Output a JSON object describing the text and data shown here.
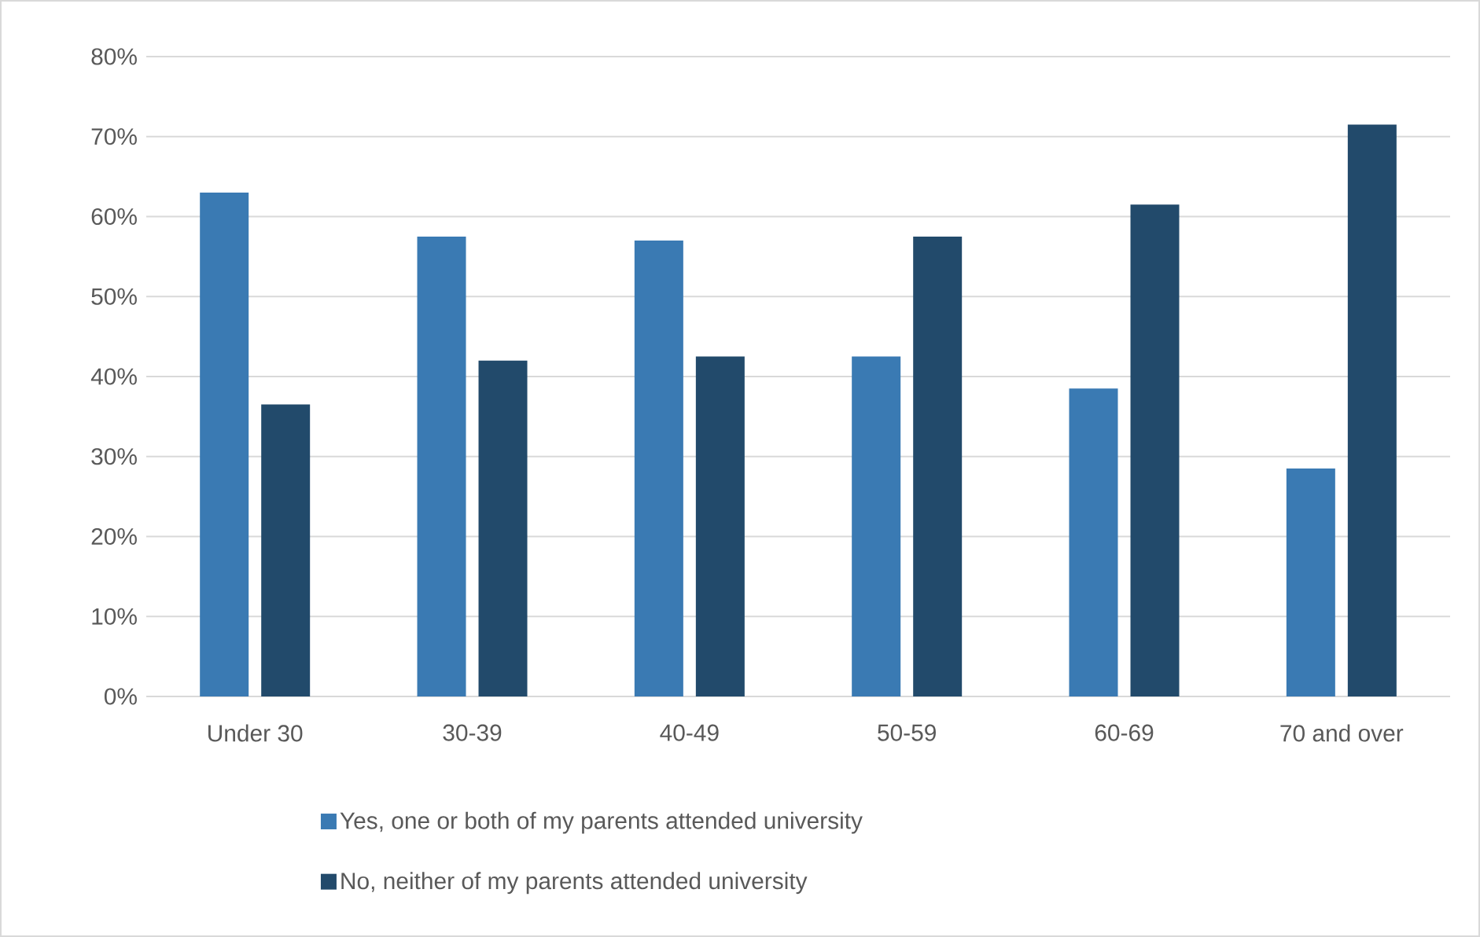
{
  "chart_data": {
    "type": "bar",
    "categories": [
      "Under 30",
      "30-39",
      "40-49",
      "50-59",
      "60-69",
      "70 and over"
    ],
    "series": [
      {
        "name": "Yes, one or both of my parents attended university",
        "color": "#3a7ab3",
        "values": [
          63,
          57.5,
          57,
          42.5,
          38.5,
          28.5
        ]
      },
      {
        "name": "No, neither of my parents attended university",
        "color": "#224a6b",
        "values": [
          36.5,
          42,
          42.5,
          57.5,
          61.5,
          71.5
        ]
      }
    ],
    "ylim": [
      0,
      80
    ],
    "yticks": [
      {
        "value": 0,
        "label": "0%"
      },
      {
        "value": 10,
        "label": "10%"
      },
      {
        "value": 20,
        "label": "20%"
      },
      {
        "value": 30,
        "label": "30%"
      },
      {
        "value": 40,
        "label": "40%"
      },
      {
        "value": 50,
        "label": "50%"
      },
      {
        "value": 60,
        "label": "60%"
      },
      {
        "value": 70,
        "label": "70%"
      },
      {
        "value": 80,
        "label": "80%"
      }
    ],
    "grid": "y",
    "legend": "bottom"
  }
}
